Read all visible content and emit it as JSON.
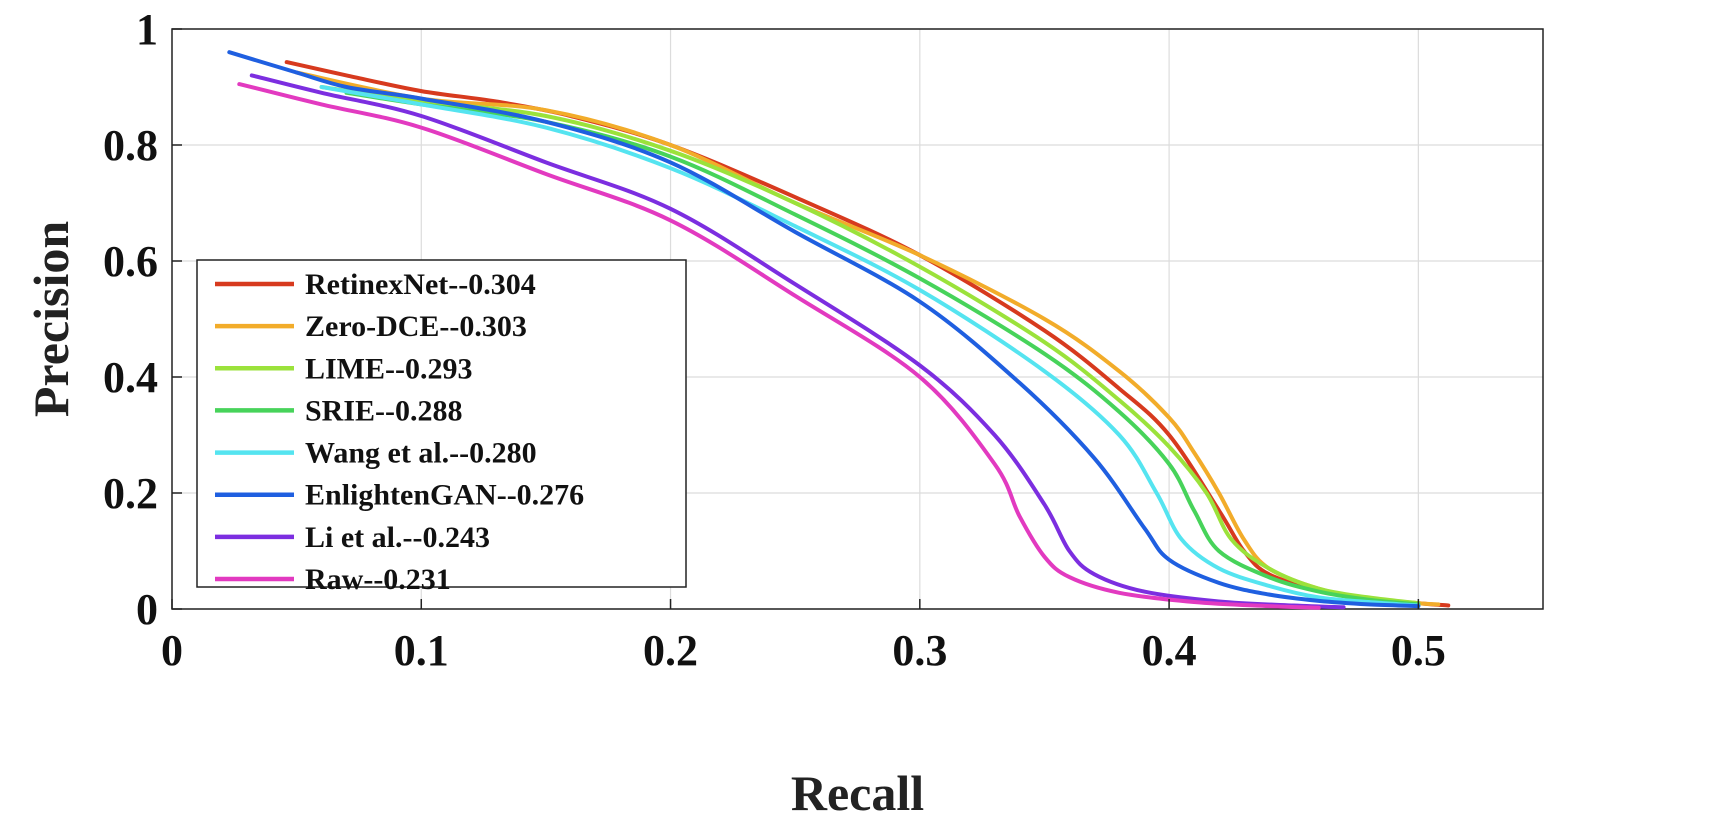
{
  "chart_data": {
    "type": "line",
    "title": "",
    "xlabel": "Recall",
    "ylabel": "Precision",
    "xlim": [
      0,
      0.55
    ],
    "ylim": [
      0,
      1
    ],
    "xticks": [
      0,
      0.1,
      0.2,
      0.3,
      0.4,
      0.5
    ],
    "xtick_labels": [
      "0",
      "0.1",
      "0.2",
      "0.3",
      "0.4",
      "0.5"
    ],
    "yticks": [
      0,
      0.2,
      0.4,
      0.6,
      0.8,
      1
    ],
    "ytick_labels": [
      "0",
      "0.2",
      "0.4",
      "0.6",
      "0.8",
      "1"
    ],
    "grid": true,
    "legend_position": "bottom-left",
    "series": [
      {
        "name": "RetinexNet--0.304",
        "color": "#d73a1e",
        "x": [
          0.046,
          0.07,
          0.1,
          0.13,
          0.16,
          0.2,
          0.25,
          0.3,
          0.35,
          0.38,
          0.4,
          0.42,
          0.43,
          0.44,
          0.46,
          0.48,
          0.5,
          0.512
        ],
        "y": [
          0.943,
          0.92,
          0.893,
          0.875,
          0.85,
          0.8,
          0.71,
          0.61,
          0.48,
          0.38,
          0.3,
          0.17,
          0.1,
          0.06,
          0.033,
          0.018,
          0.01,
          0.006
        ]
      },
      {
        "name": "Zero-DCE--0.303",
        "color": "#f2ac2a",
        "x": [
          0.05,
          0.1,
          0.15,
          0.2,
          0.25,
          0.3,
          0.35,
          0.38,
          0.4,
          0.41,
          0.42,
          0.43,
          0.44,
          0.46,
          0.48,
          0.5,
          0.508
        ],
        "y": [
          0.925,
          0.88,
          0.86,
          0.8,
          0.7,
          0.61,
          0.5,
          0.41,
          0.33,
          0.27,
          0.2,
          0.12,
          0.07,
          0.035,
          0.018,
          0.01,
          0.008
        ]
      },
      {
        "name": "LIME--0.293",
        "color": "#9be23b",
        "x": [
          0.06,
          0.1,
          0.15,
          0.2,
          0.25,
          0.3,
          0.35,
          0.38,
          0.4,
          0.415,
          0.425,
          0.44,
          0.46,
          0.48,
          0.5
        ],
        "y": [
          0.9,
          0.875,
          0.85,
          0.79,
          0.7,
          0.59,
          0.46,
          0.36,
          0.28,
          0.2,
          0.12,
          0.07,
          0.035,
          0.02,
          0.01
        ]
      },
      {
        "name": "SRIE--0.288",
        "color": "#47d35a",
        "x": [
          0.07,
          0.1,
          0.15,
          0.2,
          0.25,
          0.3,
          0.35,
          0.38,
          0.4,
          0.41,
          0.42,
          0.44,
          0.46,
          0.48,
          0.5
        ],
        "y": [
          0.89,
          0.87,
          0.84,
          0.78,
          0.68,
          0.57,
          0.44,
          0.34,
          0.25,
          0.17,
          0.1,
          0.055,
          0.03,
          0.016,
          0.008
        ]
      },
      {
        "name": "Wang et al.--0.280",
        "color": "#55e4f0",
        "x": [
          0.06,
          0.1,
          0.15,
          0.2,
          0.25,
          0.3,
          0.35,
          0.38,
          0.395,
          0.405,
          0.42,
          0.44,
          0.46,
          0.48,
          0.5
        ],
        "y": [
          0.9,
          0.87,
          0.83,
          0.76,
          0.66,
          0.55,
          0.41,
          0.3,
          0.2,
          0.12,
          0.07,
          0.04,
          0.02,
          0.012,
          0.006
        ]
      },
      {
        "name": "EnlightenGAN--0.276",
        "color": "#1f5fe0",
        "x": [
          0.023,
          0.05,
          0.07,
          0.1,
          0.15,
          0.2,
          0.25,
          0.3,
          0.34,
          0.37,
          0.39,
          0.4,
          0.42,
          0.44,
          0.46,
          0.48,
          0.5
        ],
        "y": [
          0.96,
          0.925,
          0.9,
          0.88,
          0.84,
          0.77,
          0.65,
          0.53,
          0.39,
          0.26,
          0.14,
          0.085,
          0.045,
          0.025,
          0.014,
          0.008,
          0.005
        ]
      },
      {
        "name": "Li et al.--0.243",
        "color": "#7c2ee0",
        "x": [
          0.032,
          0.06,
          0.1,
          0.15,
          0.2,
          0.25,
          0.3,
          0.33,
          0.35,
          0.36,
          0.37,
          0.39,
          0.42,
          0.45,
          0.47
        ],
        "y": [
          0.92,
          0.89,
          0.85,
          0.77,
          0.69,
          0.56,
          0.42,
          0.3,
          0.18,
          0.1,
          0.06,
          0.03,
          0.013,
          0.006,
          0.003
        ]
      },
      {
        "name": "Raw--0.231",
        "color": "#e23ac0",
        "x": [
          0.027,
          0.06,
          0.1,
          0.15,
          0.2,
          0.25,
          0.3,
          0.33,
          0.34,
          0.35,
          0.36,
          0.38,
          0.41,
          0.44,
          0.46
        ],
        "y": [
          0.905,
          0.87,
          0.83,
          0.75,
          0.67,
          0.54,
          0.4,
          0.25,
          0.16,
          0.09,
          0.055,
          0.028,
          0.012,
          0.005,
          0.002
        ]
      }
    ]
  }
}
